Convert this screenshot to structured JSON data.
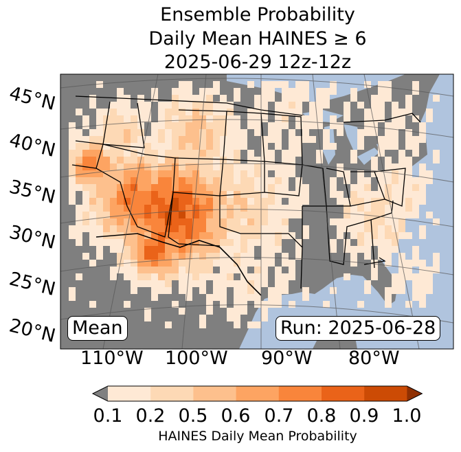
{
  "title": {
    "line1": "Ensemble Probability",
    "line2": "Daily Mean HAINES ≥ 6",
    "line3": "2025-06-29 12z-12z"
  },
  "map": {
    "lat_labels": [
      "45°N",
      "40°N",
      "35°N",
      "30°N",
      "25°N",
      "20°N"
    ],
    "lon_labels": [
      "110°W",
      "100°W",
      "90°W",
      "80°W"
    ],
    "stat_label": "Mean",
    "run_label": "Run: 2025-06-28",
    "colors": {
      "ocean": "#b0c4de",
      "land": "#7f7f7f",
      "lakes": "#aec3dc"
    }
  },
  "colorbar": {
    "ticks": [
      "0.1",
      "0.2",
      "0.5",
      "0.6",
      "0.7",
      "0.8",
      "0.9",
      "1.0"
    ],
    "label": "HAINES Daily Mean Probability",
    "colors": [
      "#fee9d5",
      "#fdd9b5",
      "#fdc08d",
      "#fda462",
      "#f9853b",
      "#ea6319",
      "#cc4b05"
    ],
    "under_color": "#808080",
    "over_color": "#8f3003"
  }
}
